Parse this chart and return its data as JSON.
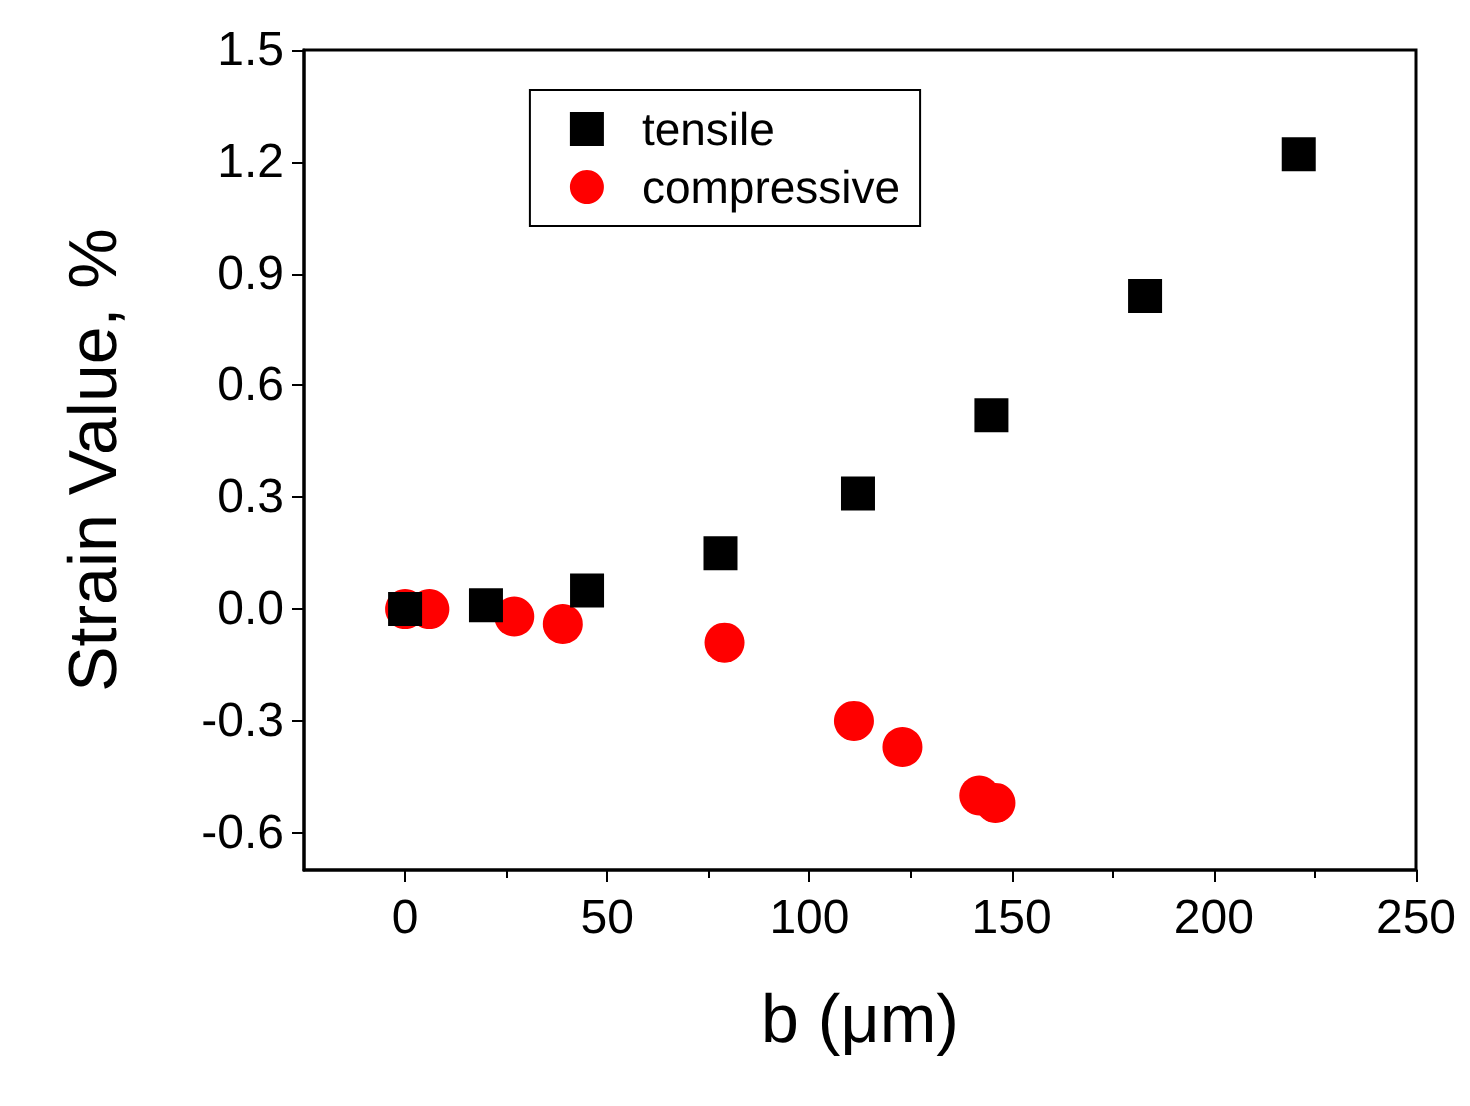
{
  "chart_data": {
    "type": "scatter",
    "xlabel": "b (μm)",
    "ylabel": "Strain Value, %",
    "xlim": [
      -25,
      250
    ],
    "xticks": [
      0,
      50,
      100,
      150,
      200,
      250
    ],
    "ylim": [
      -0.7,
      1.5
    ],
    "yticks": [
      -0.6,
      -0.3,
      {
        "value": 0,
        "label": "0.0"
      },
      0.3,
      0.6,
      0.9,
      1.2,
      1.5
    ],
    "grid": false,
    "legend": "top",
    "series": [
      {
        "name": "tensile",
        "color": "#000000",
        "marker": "square",
        "x": [
          0,
          20,
          45,
          78,
          112,
          145,
          183,
          221
        ],
        "values": [
          0,
          0.01,
          0.05,
          0.15,
          0.31,
          0.52,
          0.84,
          1.22
        ]
      },
      {
        "name": "compressive",
        "color": "#ff0000",
        "marker": "circle",
        "x": [
          0,
          6,
          27,
          39,
          79,
          111,
          123,
          142,
          146
        ],
        "values": [
          0,
          0,
          -0.02,
          -0.04,
          -0.09,
          -0.3,
          -0.37,
          -0.5,
          -0.52
        ]
      }
    ]
  }
}
